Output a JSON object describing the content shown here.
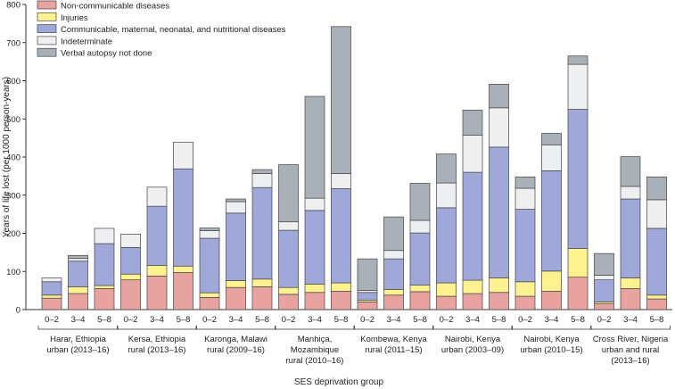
{
  "chart_data": {
    "type": "bar",
    "stacked": true,
    "ylabel": "Years of life lost (per 1000 person-years)",
    "xlabel": "SES deprivation group",
    "ylim": [
      0,
      800
    ],
    "yticks": [
      0,
      100,
      200,
      300,
      400,
      500,
      600,
      700,
      800
    ],
    "legend_position": "top-left",
    "series": [
      {
        "name": "Non-communicable diseases",
        "color": "#e8a3a0"
      },
      {
        "name": "Injuries",
        "color": "#fdf28f"
      },
      {
        "name": "Communicable, maternal, neonatal, and nutritional diseases",
        "color": "#9fa8d8"
      },
      {
        "name": "Indeterminate",
        "color": "#eeeff1"
      },
      {
        "name": "Verbal autopsy not done",
        "color": "#a9b0b8"
      }
    ],
    "groups": [
      {
        "label_lines": [
          "Harar, Ethiopia",
          "urban (2013–16)"
        ],
        "bars": [
          {
            "category": "0–2",
            "values": [
              30,
              8,
              35,
              10,
              0
            ]
          },
          {
            "category": "3–4",
            "values": [
              42,
              18,
              67,
              7,
              8
            ]
          },
          {
            "category": "5–8",
            "values": [
              55,
              8,
              110,
              40,
              0
            ]
          }
        ]
      },
      {
        "label_lines": [
          "Kersa, Ethiopia",
          "rural (2013–16)"
        ],
        "bars": [
          {
            "category": "0–2",
            "values": [
              78,
              15,
              70,
              35,
              0
            ]
          },
          {
            "category": "3–4",
            "values": [
              88,
              28,
              155,
              50,
              0
            ]
          },
          {
            "category": "5–8",
            "values": [
              97,
              17,
              255,
              70,
              0
            ]
          }
        ]
      },
      {
        "label_lines": [
          "Karonga, Malawi",
          "rural (2009–16)"
        ],
        "bars": [
          {
            "category": "0–2",
            "values": [
              32,
              12,
              143,
              20,
              7
            ]
          },
          {
            "category": "3–4",
            "values": [
              58,
              18,
              177,
              30,
              7
            ]
          },
          {
            "category": "5–8",
            "values": [
              60,
              20,
              240,
              37,
              10
            ]
          }
        ]
      },
      {
        "label_lines": [
          "Manhiça,",
          "Mozambique",
          "rural (2010–16)"
        ],
        "bars": [
          {
            "category": "0–2",
            "values": [
              40,
              18,
              150,
              22,
              150
            ]
          },
          {
            "category": "3–4",
            "values": [
              45,
              22,
              193,
              32,
              267
            ]
          },
          {
            "category": "5–8",
            "values": [
              48,
              22,
              247,
              40,
              385
            ]
          }
        ]
      },
      {
        "label_lines": [
          "Kombewa, Kenya",
          "rural (2011–15)"
        ],
        "bars": [
          {
            "category": "0–2",
            "values": [
              20,
              5,
              20,
              5,
              83
            ]
          },
          {
            "category": "3–4",
            "values": [
              38,
              15,
              80,
              22,
              88
            ]
          },
          {
            "category": "5–8",
            "values": [
              47,
              17,
              137,
              33,
              97
            ]
          }
        ]
      },
      {
        "label_lines": [
          "Nairobi, Kenya",
          "urban (2003–09)"
        ],
        "bars": [
          {
            "category": "0–2",
            "values": [
              35,
              35,
              197,
              65,
              76
            ]
          },
          {
            "category": "3–4",
            "values": [
              42,
              35,
              283,
              97,
              66
            ]
          },
          {
            "category": "5–8",
            "values": [
              45,
              38,
              343,
              103,
              62
            ]
          }
        ]
      },
      {
        "label_lines": [
          "Nairobi, Kenya",
          "urban (2010–15)"
        ],
        "bars": [
          {
            "category": "0–2",
            "values": [
              35,
              38,
              190,
              55,
              30
            ]
          },
          {
            "category": "3–4",
            "values": [
              48,
              53,
              263,
              68,
              30
            ]
          },
          {
            "category": "5–8",
            "values": [
              85,
              75,
              365,
              118,
              22
            ]
          }
        ]
      },
      {
        "label_lines": [
          "Cross River, Nigeria",
          "urban and rural",
          "(2013–16)"
        ],
        "bars": [
          {
            "category": "0–2",
            "values": [
              15,
              5,
              58,
              12,
              57
            ]
          },
          {
            "category": "3–4",
            "values": [
              55,
              28,
              207,
              33,
              78
            ]
          },
          {
            "category": "5–8",
            "values": [
              28,
              10,
              175,
              75,
              60
            ]
          }
        ]
      }
    ]
  }
}
